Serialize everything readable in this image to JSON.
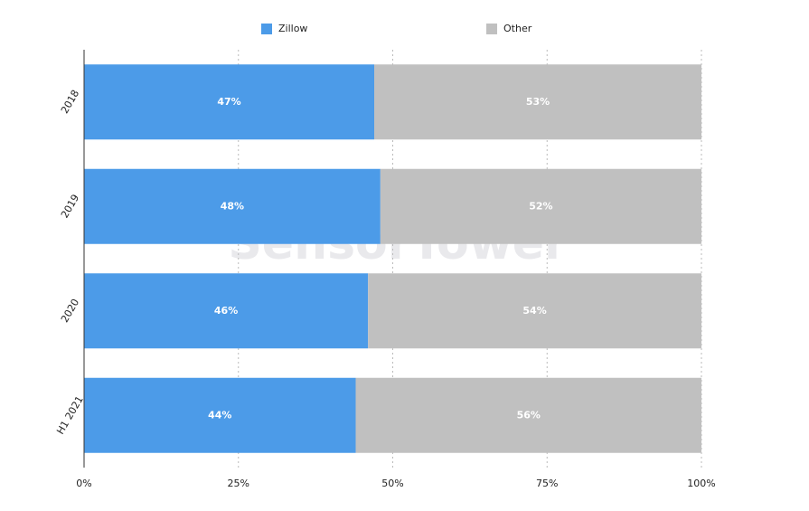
{
  "chart_data": {
    "type": "stacked-bar-horizontal",
    "watermark": "SensorTower",
    "categories": [
      "2018",
      "2019",
      "2020",
      "H1 2021"
    ],
    "series": [
      {
        "name": "Zillow",
        "color": "#4c9be8",
        "values": [
          47,
          48,
          46,
          44
        ],
        "value_labels": [
          "47%",
          "48%",
          "46%",
          "44%"
        ]
      },
      {
        "name": "Other",
        "color": "#c0c0c0",
        "values": [
          53,
          52,
          54,
          56
        ],
        "value_labels": [
          "53%",
          "52%",
          "54%",
          "56%"
        ]
      }
    ],
    "xlim": [
      0,
      100
    ],
    "xticks": [
      {
        "value": 0,
        "label": "0%"
      },
      {
        "value": 25,
        "label": "25%"
      },
      {
        "value": 50,
        "label": "50%"
      },
      {
        "value": 75,
        "label": "75%"
      },
      {
        "value": 100,
        "label": "100%"
      }
    ],
    "grid": true,
    "legend": "top"
  }
}
